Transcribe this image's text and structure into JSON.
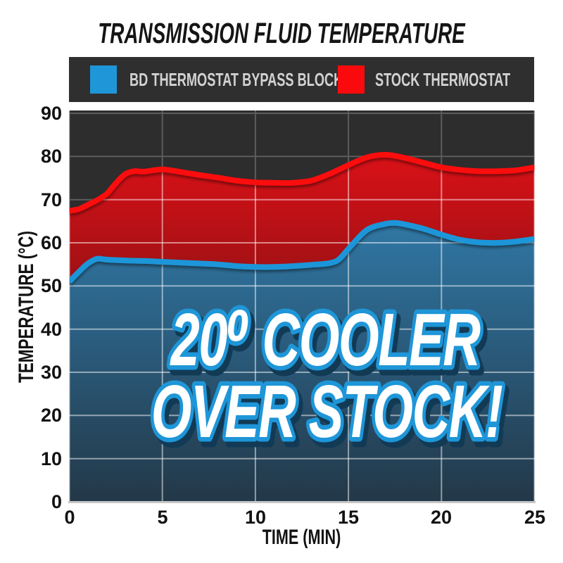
{
  "title": "TRANSMISSION FLUID TEMPERATURE",
  "legend": {
    "background": "#2f2f2f",
    "items": [
      {
        "label": "BD THERMOSTAT BYPASS BLOCK",
        "color": "#1e96d8"
      },
      {
        "label": "STOCK THERMOSTAT",
        "color": "#fa0a0c"
      }
    ]
  },
  "colors": {
    "plot_background": "#2d2d2d",
    "grid_on_dark": "#5c5c5c",
    "grid_on_fill": "#ffffff",
    "axis_line": "#c6c6c6",
    "tick_text": "#121212",
    "blue_accent": "#1e96d8",
    "red_accent": "#fa0a0c"
  },
  "chart_data": {
    "type": "area",
    "title": "TRANSMISSION FLUID TEMPERATURE",
    "xlabel": "TIME (MIN)",
    "ylabel": "TEMPERATURE (°C)",
    "xlim": [
      0,
      25
    ],
    "ylim": [
      0,
      90
    ],
    "x_ticks": [
      0,
      5,
      10,
      15,
      20,
      25
    ],
    "y_ticks": [
      0,
      10,
      20,
      30,
      40,
      50,
      60,
      70,
      80,
      90
    ],
    "grid": true,
    "legend_position": "top",
    "series": [
      {
        "name": "STOCK THERMOSTAT",
        "color": "#fa0a0c",
        "x": [
          0,
          0.5,
          1,
          1.5,
          2,
          2.5,
          3,
          3.5,
          4,
          5,
          6,
          7,
          8,
          9,
          10,
          11,
          12,
          13,
          14,
          15,
          16,
          17,
          18,
          19,
          20,
          21,
          22,
          23,
          24,
          25
        ],
        "values": [
          67.4,
          67.8,
          68.8,
          69.9,
          71.3,
          73.8,
          75.9,
          76.6,
          76.5,
          77.0,
          76.4,
          75.7,
          75.1,
          74.4,
          74.0,
          73.9,
          73.9,
          74.4,
          76.0,
          78.0,
          79.8,
          80.4,
          79.7,
          78.6,
          77.5,
          76.9,
          76.6,
          76.6,
          76.8,
          77.5
        ]
      },
      {
        "name": "BD THERMOSTAT BYPASS BLOCK",
        "color": "#1e96d8",
        "x": [
          0,
          0.5,
          1,
          1.5,
          2,
          3,
          4,
          5,
          6,
          7,
          8,
          9,
          10,
          11,
          12,
          13,
          14,
          14.5,
          15,
          16,
          17,
          17.5,
          18,
          19,
          20,
          21,
          22,
          23,
          24,
          25
        ],
        "values": [
          51.0,
          53.2,
          55.2,
          56.3,
          56.1,
          55.9,
          55.8,
          55.6,
          55.4,
          55.2,
          55.0,
          54.6,
          54.4,
          54.4,
          54.6,
          54.9,
          55.3,
          56.2,
          58.6,
          63.0,
          64.4,
          64.6,
          64.3,
          63.3,
          61.9,
          60.7,
          60.1,
          60.0,
          60.3,
          60.9
        ]
      }
    ],
    "annotation": {
      "line1": "20⁰ COOLER",
      "line2": "OVER STOCK!"
    }
  }
}
